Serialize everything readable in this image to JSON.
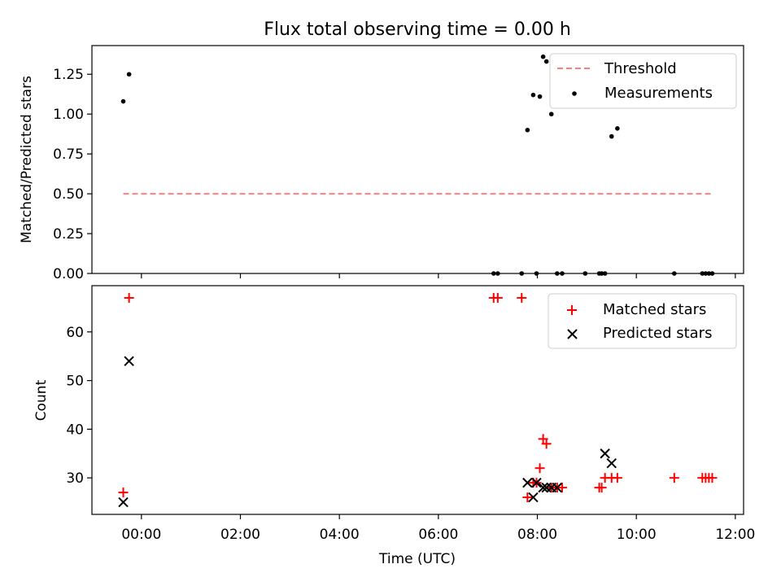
{
  "chart_data": [
    {
      "type": "scatter",
      "title": "Flux total observing time = 0.00 h",
      "xlabel": "",
      "ylabel": "Matched/Predicted stars",
      "xlim": [
        "-01:00",
        "12:10"
      ],
      "ylim": [
        0,
        1.43
      ],
      "yticks": [
        0,
        0.25,
        0.5,
        0.75,
        1.0,
        1.25
      ],
      "ytick_labels": [
        "0.00",
        "0.25",
        "0.50",
        "0.75",
        "1.00",
        "1.25"
      ],
      "grid": false,
      "legend": "top-right",
      "series": [
        {
          "name": "Threshold",
          "kind": "dashed-line",
          "color": "#ff7f7f",
          "x": [
            "-00:22",
            "11:32"
          ],
          "y": [
            0.5,
            0.5
          ]
        },
        {
          "name": "Measurements",
          "kind": "dots",
          "color": "#000000",
          "x": [
            "-00:22",
            "-00:15",
            "07:07",
            "07:12",
            "07:41",
            "07:48",
            "07:55",
            "07:59",
            "08:03",
            "08:07",
            "08:11",
            "08:17",
            "08:24",
            "08:30",
            "08:58",
            "09:15",
            "09:18",
            "09:22",
            "09:30",
            "09:37",
            "10:46",
            "11:20",
            "11:24",
            "11:28",
            "11:32"
          ],
          "y": [
            1.08,
            1.25,
            0,
            0,
            0,
            0.9,
            1.12,
            0,
            1.11,
            1.36,
            1.33,
            1.0,
            0,
            0,
            0,
            0,
            0,
            0,
            0.86,
            0.91,
            0,
            0,
            0,
            0,
            0
          ]
        }
      ]
    },
    {
      "type": "scatter",
      "title": "",
      "xlabel": "Time (UTC)",
      "ylabel": "Count",
      "xlim": [
        "-01:00",
        "12:10"
      ],
      "ylim": [
        22.5,
        69.5
      ],
      "yticks": [
        30,
        40,
        50,
        60
      ],
      "xtick_labels": [
        "00:00",
        "02:00",
        "04:00",
        "06:00",
        "08:00",
        "10:00",
        "12:00"
      ],
      "grid": false,
      "legend": "top-right",
      "series": [
        {
          "name": "Matched stars",
          "marker": "+",
          "color": "#ff0000",
          "x": [
            "-00:22",
            "-00:15",
            "07:07",
            "07:12",
            "07:41",
            "07:48",
            "07:55",
            "07:59",
            "08:03",
            "08:07",
            "08:11",
            "08:17",
            "08:24",
            "08:30",
            "09:15",
            "09:18",
            "09:22",
            "09:30",
            "09:37",
            "10:46",
            "11:20",
            "11:24",
            "11:28",
            "11:32"
          ],
          "y": [
            27,
            67,
            67,
            67,
            67,
            26,
            29,
            29,
            32,
            38,
            37,
            28,
            28,
            28,
            28,
            28,
            30,
            30,
            30,
            30,
            30,
            30,
            30,
            30
          ]
        },
        {
          "name": "Predicted stars",
          "marker": "x",
          "color": "#000000",
          "x": [
            "-00:22",
            "-00:15",
            "07:48",
            "07:55",
            "07:59",
            "08:07",
            "08:11",
            "08:17",
            "08:24",
            "09:22",
            "09:30"
          ],
          "y": [
            25,
            54,
            29,
            26,
            29,
            28,
            28,
            28,
            28,
            35,
            33
          ]
        }
      ]
    }
  ]
}
